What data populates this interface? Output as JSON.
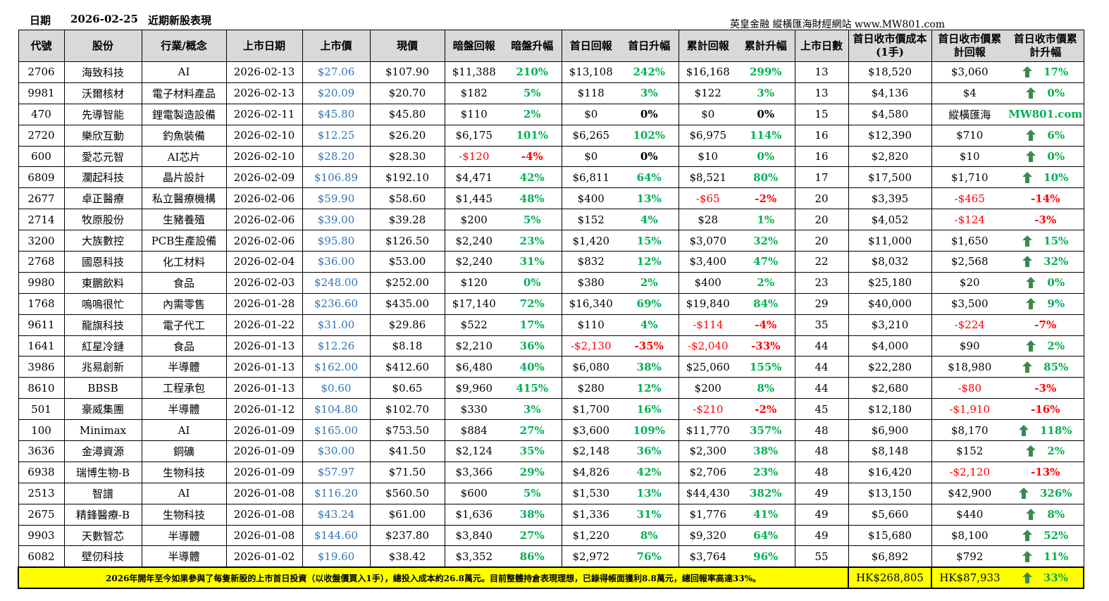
{
  "title": {
    "date_label": "日期",
    "date": "2026-02-25",
    "heading": "近期新股表現",
    "source": "英皇金融 縱橫匯海財經網站 www.MW801.com"
  },
  "table": {
    "header": [
      "代號",
      "股份",
      "行業/概念",
      "上市日期",
      "上市價",
      "現價",
      "暗盤回報",
      "暗盤升幅",
      "首日回報",
      "首日升幅",
      "累計回報",
      "累計升幅",
      "上市日數",
      "首日收市價成本(1手)",
      "首日收市價累計回報",
      "首日收市價累計升幅"
    ],
    "rows": [
      [
        "2706",
        "海致科技",
        "AI",
        "2026-02-13",
        "$27.06",
        "$107.90",
        "$11,388",
        "210%",
        "$13,108",
        "242%",
        "$16,168",
        "299%",
        "13",
        "$18,520",
        "$3,060",
        "17%"
      ],
      [
        "9981",
        "沃爾核材",
        "電子材料產品",
        "2026-02-13",
        "$20.09",
        "$20.70",
        "$182",
        "5%",
        "$118",
        "3%",
        "$122",
        "3%",
        "13",
        "$4,136",
        "$4",
        "0%"
      ],
      [
        "470",
        "先導智能",
        "鋰電製造設備",
        "2026-02-11",
        "$45.80",
        "$45.80",
        "$110",
        "2%",
        "$0",
        "0%",
        "$0",
        "0%",
        "15",
        "$4,580",
        "縱橫匯海",
        "MW801.com"
      ],
      [
        "2720",
        "樂欣互動",
        "釣魚裝備",
        "2026-02-10",
        "$12.25",
        "$26.20",
        "$6,175",
        "101%",
        "$6,265",
        "102%",
        "$6,975",
        "114%",
        "16",
        "$12,390",
        "$710",
        "6%"
      ],
      [
        "600",
        "愛芯元智",
        "AI芯片",
        "2026-02-10",
        "$28.20",
        "$28.30",
        "-$120",
        "-4%",
        "$0",
        "0%",
        "$10",
        "0%",
        "16",
        "$2,820",
        "$10",
        "0%"
      ],
      [
        "6809",
        "瀾起科技",
        "晶片設計",
        "2026-02-09",
        "$106.89",
        "$192.10",
        "$4,471",
        "42%",
        "$6,811",
        "64%",
        "$8,521",
        "80%",
        "17",
        "$17,500",
        "$1,710",
        "10%"
      ],
      [
        "2677",
        "卓正醫療",
        "私立醫療機構",
        "2026-02-06",
        "$59.90",
        "$58.60",
        "$1,445",
        "48%",
        "$400",
        "13%",
        "-$65",
        "-2%",
        "20",
        "$3,395",
        "-$465",
        "-14%"
      ],
      [
        "2714",
        "牧原股份",
        "生豬養殖",
        "2026-02-06",
        "$39.00",
        "$39.28",
        "$200",
        "5%",
        "$152",
        "4%",
        "$28",
        "1%",
        "20",
        "$4,052",
        "-$124",
        "-3%"
      ],
      [
        "3200",
        "大族數控",
        "PCB生產設備",
        "2026-02-06",
        "$95.80",
        "$126.50",
        "$2,240",
        "23%",
        "$1,420",
        "15%",
        "$3,070",
        "32%",
        "20",
        "$11,000",
        "$1,650",
        "15%"
      ],
      [
        "2768",
        "國恩科技",
        "化工材料",
        "2026-02-04",
        "$36.00",
        "$53.00",
        "$2,240",
        "31%",
        "$832",
        "12%",
        "$3,400",
        "47%",
        "22",
        "$8,032",
        "$2,568",
        "32%"
      ],
      [
        "9980",
        "東鵬飲料",
        "食品",
        "2026-02-03",
        "$248.00",
        "$252.00",
        "$120",
        "0%",
        "$380",
        "2%",
        "$400",
        "2%",
        "23",
        "$25,180",
        "$20",
        "0%"
      ],
      [
        "1768",
        "嗚嗚很忙",
        "內需零售",
        "2026-01-28",
        "$236.60",
        "$435.00",
        "$17,140",
        "72%",
        "$16,340",
        "69%",
        "$19,840",
        "84%",
        "29",
        "$40,000",
        "$3,500",
        "9%"
      ],
      [
        "9611",
        "龍旗科技",
        "電子代工",
        "2026-01-22",
        "$31.00",
        "$29.86",
        "$522",
        "17%",
        "$110",
        "4%",
        "-$114",
        "-4%",
        "35",
        "$3,210",
        "-$224",
        "-7%"
      ],
      [
        "1641",
        "紅星冷鏈",
        "食品",
        "2026-01-13",
        "$12.26",
        "$8.18",
        "$2,210",
        "36%",
        "-$2,130",
        "-35%",
        "-$2,040",
        "-33%",
        "44",
        "$4,000",
        "$90",
        "2%"
      ],
      [
        "3986",
        "兆易創新",
        "半導體",
        "2026-01-13",
        "$162.00",
        "$412.60",
        "$6,480",
        "40%",
        "$6,080",
        "38%",
        "$25,060",
        "155%",
        "44",
        "$22,280",
        "$18,980",
        "85%"
      ],
      [
        "8610",
        "BBSB",
        "工程承包",
        "2026-01-13",
        "$0.60",
        "$0.65",
        "$9,960",
        "415%",
        "$280",
        "12%",
        "$200",
        "8%",
        "44",
        "$2,680",
        "-$80",
        "-3%"
      ],
      [
        "501",
        "豪威集團",
        "半導體",
        "2026-01-12",
        "$104.80",
        "$102.70",
        "$330",
        "3%",
        "$1,700",
        "16%",
        "-$210",
        "-2%",
        "45",
        "$12,180",
        "-$1,910",
        "-16%"
      ],
      [
        "100",
        "Minimax",
        "AI",
        "2026-01-09",
        "$165.00",
        "$753.50",
        "$884",
        "27%",
        "$3,600",
        "109%",
        "$11,770",
        "357%",
        "48",
        "$6,900",
        "$8,170",
        "118%"
      ],
      [
        "3636",
        "金潯資源",
        "銅礦",
        "2026-01-09",
        "$30.00",
        "$41.50",
        "$2,124",
        "35%",
        "$2,148",
        "36%",
        "$2,300",
        "38%",
        "48",
        "$8,148",
        "$152",
        "2%"
      ],
      [
        "6938",
        "瑞博生物-B",
        "生物科技",
        "2026-01-09",
        "$57.97",
        "$71.50",
        "$3,366",
        "29%",
        "$4,826",
        "42%",
        "$2,706",
        "23%",
        "48",
        "$16,420",
        "-$2,120",
        "-13%"
      ],
      [
        "2513",
        "智譜",
        "AI",
        "2026-01-08",
        "$116.20",
        "$560.50",
        "$600",
        "5%",
        "$1,530",
        "13%",
        "$44,430",
        "382%",
        "49",
        "$13,150",
        "$42,900",
        "326%"
      ],
      [
        "2675",
        "精鋒醫療-B",
        "生物科技",
        "2026-01-08",
        "$43.24",
        "$61.00",
        "$1,636",
        "38%",
        "$1,336",
        "31%",
        "$1,776",
        "41%",
        "49",
        "$5,660",
        "$440",
        "8%"
      ],
      [
        "9903",
        "天數智芯",
        "半導體",
        "2026-01-08",
        "$144.60",
        "$237.80",
        "$3,840",
        "27%",
        "$1,220",
        "8%",
        "$9,320",
        "64%",
        "49",
        "$15,680",
        "$8,100",
        "52%"
      ],
      [
        "6082",
        "壁仞科技",
        "半導體",
        "2026-01-02",
        "$19.60",
        "$38.42",
        "$3,352",
        "86%",
        "$2,972",
        "76%",
        "$3,764",
        "96%",
        "55",
        "$6,892",
        "$792",
        "11%"
      ]
    ]
  },
  "footer": {
    "note": "2026年開年至今如果參與了每隻新股的上市首日投資（以收盤價買入1手），總投入成本約26.8萬元。目前整體持倉表現理想，已錄得帳面獲利8.8萬元，總回報率高達33%。",
    "total_cost": "HK$268,805",
    "total_return": "HK$87,933",
    "total_pct": "33%"
  }
}
